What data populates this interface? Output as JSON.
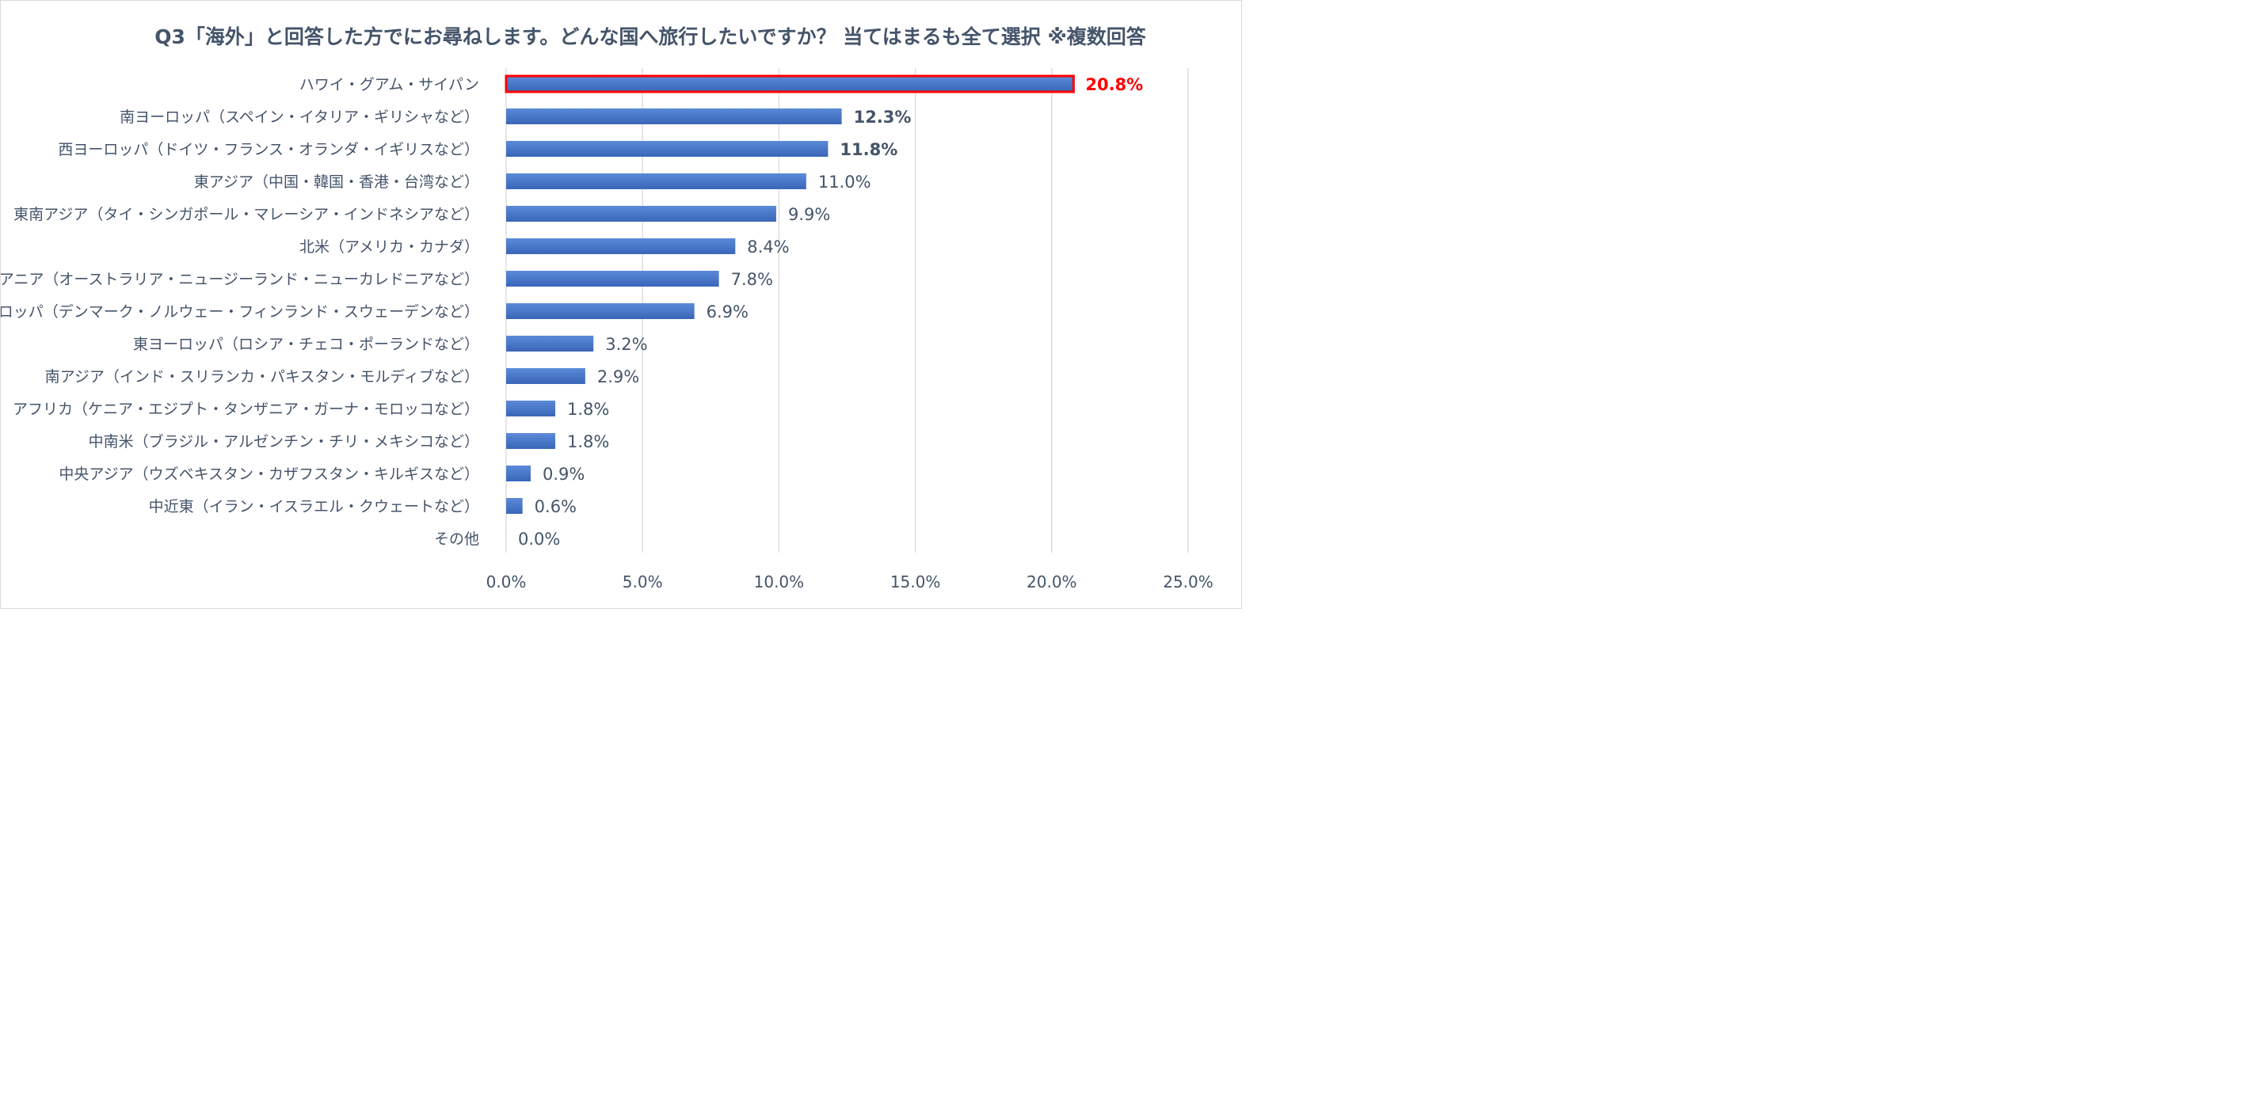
{
  "chart_data": {
    "type": "bar",
    "orientation": "horizontal",
    "title": "Q3「海外」と回答した方でにお尋ねします。どんな国へ旅行したいですか？ 当てはまるも全て選択 ※複数回答",
    "categories": [
      "ハワイ・グアム・サイパン",
      "南ヨーロッパ（スペイン・イタリア・ギリシャなど）",
      "西ヨーロッパ（ドイツ・フランス・オランダ・イギリスなど）",
      "東アジア（中国・韓国・香港・台湾など）",
      "東南アジア（タイ・シンガポール・マレーシア・インドネシアなど）",
      "北米（アメリカ・カナダ）",
      "オセアニア（オーストラリア・ニュージーランド・ニューカレドニアなど）",
      "北ヨーロッパ（デンマーク・ノルウェー・フィンランド・スウェーデンなど）",
      "東ヨーロッパ（ロシア・チェコ・ポーランドなど）",
      "南アジア（インド・スリランカ・パキスタン・モルディブなど）",
      "アフリカ（ケニア・エジプト・タンザニア・ガーナ・モロッコなど）",
      "中南米（ブラジル・アルゼンチン・チリ・メキシコなど）",
      "中央アジア（ウズベキスタン・カザフスタン・キルギスなど）",
      "中近東（イラン・イスラエル・クウェートなど）",
      "その他"
    ],
    "values": [
      20.8,
      12.3,
      11.8,
      11.0,
      9.9,
      8.4,
      7.8,
      6.9,
      3.2,
      2.9,
      1.8,
      1.8,
      0.9,
      0.6,
      0.0
    ],
    "data_labels": [
      "20.8%",
      "12.3%",
      "11.8%",
      "11.0%",
      "9.9%",
      "8.4%",
      "7.8%",
      "6.9%",
      "3.2%",
      "2.9%",
      "1.8%",
      "1.8%",
      "0.9%",
      "0.6%",
      "0.0%"
    ],
    "x_ticks": [
      "0.0%",
      "5.0%",
      "10.0%",
      "15.0%",
      "20.0%",
      "25.0%"
    ],
    "xlim": [
      0,
      25
    ],
    "grid": "vertical",
    "legend": "none",
    "highlight": {
      "index": 0,
      "outline_color": "#ff0000",
      "label_color": "#ff0000"
    },
    "bold_labels": [
      0,
      1,
      2
    ],
    "colors": {
      "bar": "#4472c4",
      "bar_dark": "#2f5597",
      "label_text": "#44546a",
      "tick_text": "#44546a",
      "grid": "#d9d9d9"
    }
  }
}
